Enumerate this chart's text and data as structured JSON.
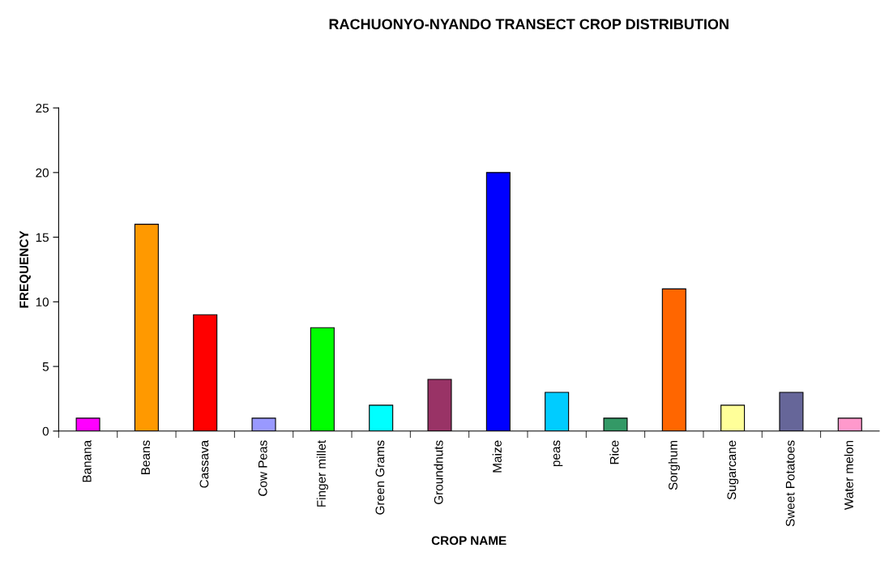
{
  "chart_data": {
    "type": "bar",
    "title": "RACHUONYO-NYANDO TRANSECT CROP DISTRIBUTION",
    "xlabel": "CROP NAME",
    "ylabel": "FREQUENCY",
    "categories": [
      "Banana",
      "Beans",
      "Cassava",
      "Cow Peas",
      "Finger millet",
      "Green Grams",
      "Groundnuts",
      "Maize",
      "peas",
      "Rice",
      "Sorghum",
      "Sugarcane",
      "Sweet Potatoes",
      "Water melon"
    ],
    "values": [
      1,
      16,
      9,
      1,
      8,
      2,
      4,
      20,
      3,
      1,
      11,
      2,
      3,
      1
    ],
    "colors": [
      "#ff00ff",
      "#ff9900",
      "#ff0000",
      "#9999ff",
      "#00ff00",
      "#00ffff",
      "#993366",
      "#0000ff",
      "#00ccff",
      "#339966",
      "#ff6600",
      "#ffff99",
      "#666699",
      "#ff99cc"
    ],
    "ylim": [
      0,
      25
    ],
    "yticks": [
      0,
      5,
      10,
      15,
      20,
      25
    ],
    "grid": false,
    "legend": false
  }
}
